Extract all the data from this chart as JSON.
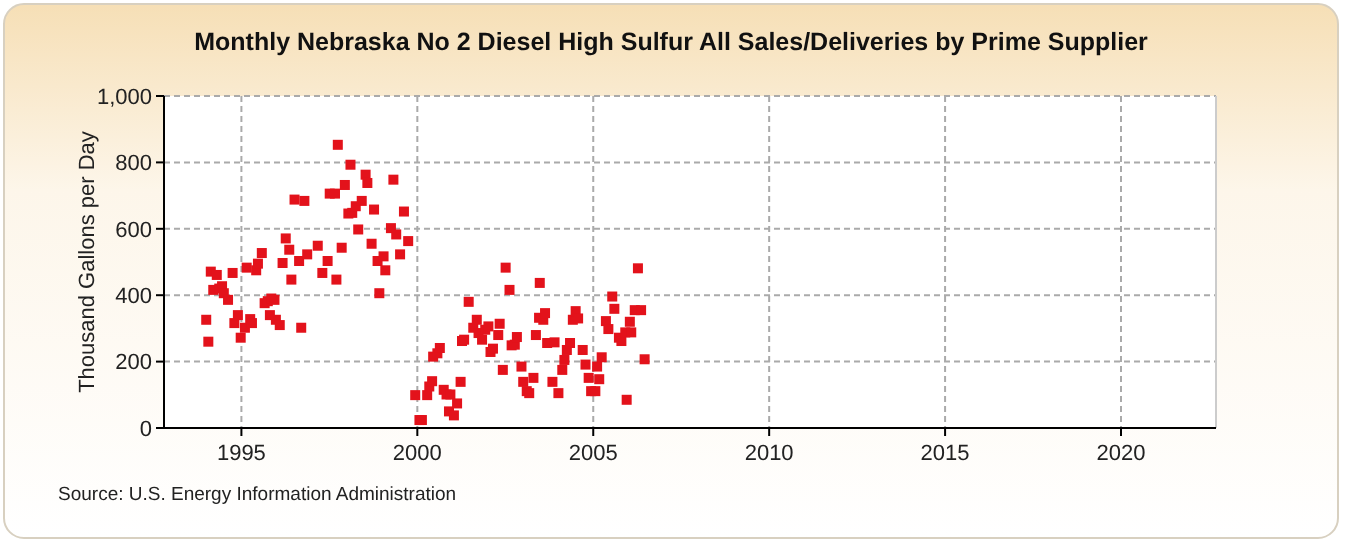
{
  "chart_data": {
    "type": "scatter",
    "title": "Monthly Nebraska No 2 Diesel High Sulfur All Sales/Deliveries by Prime Supplier",
    "ylabel": "Thousand Gallons per Day",
    "annotations": [
      "Source: U.S. Energy Information Administration"
    ],
    "xlim": [
      1992.8,
      2022.7
    ],
    "xticks": [
      1995,
      2000,
      2005,
      2010,
      2015,
      2020
    ],
    "ylim": [
      0,
      1000
    ],
    "yticks": [
      0,
      200,
      400,
      600,
      800,
      {
        "value": 1000,
        "label": "1,000"
      }
    ],
    "grid": true,
    "marker": "square",
    "series": [
      {
        "color": "#e3121b",
        "x": [
          1994.0,
          1994.06,
          1994.13,
          1994.2,
          1994.3,
          1994.37,
          1994.45,
          1994.5,
          1994.62,
          1994.75,
          1994.8,
          1994.9,
          1994.98,
          1995.1,
          1995.15,
          1995.25,
          1995.3,
          1995.42,
          1995.47,
          1995.58,
          1995.66,
          1995.75,
          1995.85,
          1995.94,
          1995.81,
          1995.98,
          1996.09,
          1996.17,
          1996.26,
          1996.36,
          1996.42,
          1996.51,
          1996.64,
          1996.7,
          1996.79,
          1996.87,
          1997.17,
          1997.3,
          1997.45,
          1997.51,
          1997.66,
          1997.7,
          1997.74,
          1997.85,
          1997.94,
          1998.04,
          1998.1,
          1998.15,
          1998.25,
          1998.32,
          1998.42,
          1998.53,
          1998.58,
          1998.7,
          1998.77,
          1998.87,
          1998.92,
          1999.04,
          1999.09,
          1999.25,
          1999.32,
          1999.4,
          1999.51,
          1999.62,
          1999.74,
          1999.94,
          2000.06,
          2000.13,
          2000.28,
          2000.34,
          2000.42,
          2000.45,
          2000.57,
          2000.64,
          2000.75,
          2000.83,
          2000.94,
          2000.9,
          2001.04,
          2001.13,
          2001.23,
          2001.27,
          2001.33,
          2001.46,
          2001.59,
          2001.69,
          2001.74,
          2001.84,
          2001.93,
          2002.02,
          2002.08,
          2002.15,
          2002.3,
          2002.34,
          2002.43,
          2002.51,
          2002.62,
          2002.68,
          2002.77,
          2002.83,
          2002.96,
          2003.01,
          2003.11,
          2003.18,
          2003.3,
          2003.37,
          2003.48,
          2003.46,
          2003.58,
          2003.63,
          2003.69,
          2003.84,
          2003.9,
          2004.01,
          2004.12,
          2004.18,
          2004.25,
          2004.34,
          2004.42,
          2004.5,
          2004.57,
          2004.7,
          2004.78,
          2004.87,
          2004.94,
          2005.06,
          2005.11,
          2005.17,
          2005.24,
          2005.36,
          2005.43,
          2005.54,
          2005.6,
          2005.73,
          2005.8,
          2005.91,
          2005.95,
          2006.04,
          2006.08,
          2006.18,
          2006.27,
          2006.36,
          2006.46
        ],
        "values": [
          326,
          260,
          471,
          416,
          461,
          420,
          427,
          406,
          386,
          467,
          316,
          340,
          272,
          302,
          483,
          328,
          316,
          475,
          495,
          527,
          376,
          382,
          390,
          386,
          340,
          326,
          310,
          497,
          571,
          537,
          447,
          688,
          503,
          302,
          684,
          523,
          549,
          467,
          503,
          706,
          706,
          447,
          853,
          543,
          732,
          646,
          793,
          648,
          668,
          598,
          684,
          763,
          738,
          555,
          658,
          503,
          406,
          517,
          475,
          602,
          748,
          583,
          523,
          652,
          563,
          99,
          24,
          24,
          99,
          125,
          141,
          215,
          225,
          241,
          115,
          101,
          101,
          50,
          38,
          74,
          139,
          262,
          266,
          380,
          302,
          326,
          286,
          266,
          296,
          306,
          229,
          239,
          280,
          314,
          175,
          483,
          416,
          249,
          251,
          274,
          185,
          139,
          111,
          105,
          151,
          280,
          437,
          332,
          326,
          346,
          256,
          139,
          258,
          105,
          175,
          205,
          235,
          256,
          326,
          352,
          330,
          235,
          191,
          151,
          111,
          111,
          185,
          147,
          213,
          322,
          298,
          396,
          359,
          272,
          262,
          288,
          85,
          320,
          288,
          355,
          481,
          355,
          207
        ]
      }
    ]
  }
}
